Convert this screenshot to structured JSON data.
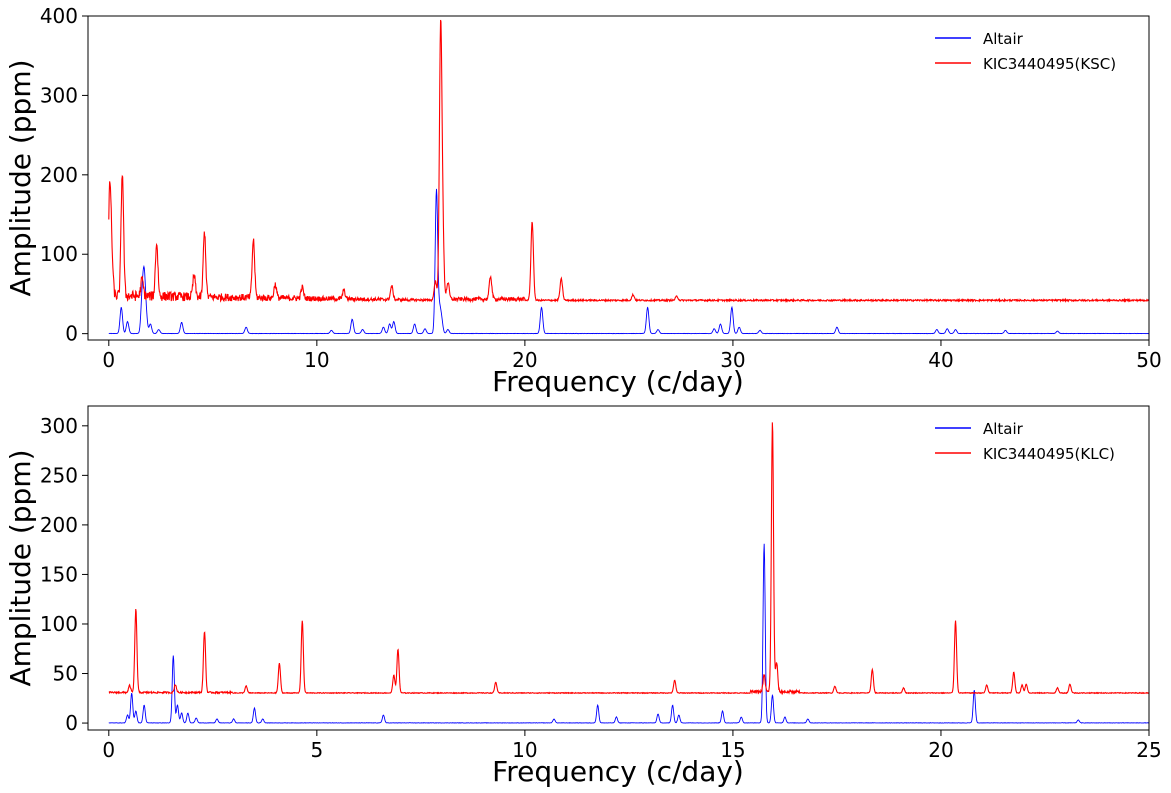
{
  "colors": {
    "altair": "#0000ff",
    "kic": "#ff0000"
  },
  "chart_data": [
    {
      "type": "line",
      "xlabel": "Frequency  (c/day)",
      "ylabel": "Amplitude (ppm)",
      "xlim": [
        -1,
        50
      ],
      "ylim": [
        -8,
        400
      ],
      "xticks": [
        0,
        10,
        20,
        30,
        40,
        50
      ],
      "yticks": [
        0,
        100,
        200,
        300,
        400
      ],
      "grid": false,
      "legend_position": "top-right",
      "series": [
        {
          "name": "Altair",
          "color": "#0000ff",
          "baseline": 0,
          "peaks": [
            [
              0.6,
              33
            ],
            [
              0.9,
              15
            ],
            [
              1.6,
              42
            ],
            [
              1.7,
              68
            ],
            [
              1.8,
              20
            ],
            [
              2.0,
              12
            ],
            [
              2.4,
              5
            ],
            [
              3.5,
              14
            ],
            [
              6.6,
              8
            ],
            [
              10.7,
              4
            ],
            [
              11.7,
              18
            ],
            [
              12.2,
              5
            ],
            [
              13.2,
              8
            ],
            [
              13.5,
              12
            ],
            [
              13.7,
              15
            ],
            [
              14.7,
              12
            ],
            [
              15.2,
              6
            ],
            [
              15.75,
              181
            ],
            [
              15.9,
              28
            ],
            [
              16.0,
              16
            ],
            [
              16.3,
              5
            ],
            [
              20.8,
              33
            ],
            [
              25.9,
              33
            ],
            [
              26.4,
              5
            ],
            [
              29.1,
              6
            ],
            [
              29.4,
              12
            ],
            [
              29.95,
              33
            ],
            [
              30.3,
              8
            ],
            [
              31.3,
              4
            ],
            [
              35.0,
              8
            ],
            [
              39.8,
              5
            ],
            [
              40.3,
              6
            ],
            [
              40.7,
              5
            ],
            [
              43.1,
              4
            ],
            [
              45.6,
              3
            ]
          ]
        },
        {
          "name": "KIC3440495(KSC)",
          "color": "#ff0000",
          "baseline": 41,
          "peaks": [
            [
              0.05,
              175
            ],
            [
              0.15,
              78
            ],
            [
              0.65,
              197
            ],
            [
              1.6,
              62
            ],
            [
              2.3,
              108
            ],
            [
              4.1,
              68
            ],
            [
              4.6,
              123
            ],
            [
              6.95,
              114
            ],
            [
              8.0,
              58
            ],
            [
              9.3,
              55
            ],
            [
              11.3,
              52
            ],
            [
              13.6,
              58
            ],
            [
              15.7,
              65
            ],
            [
              15.95,
              376
            ],
            [
              16.05,
              118
            ],
            [
              16.3,
              62
            ],
            [
              18.35,
              70
            ],
            [
              20.35,
              140
            ],
            [
              21.75,
              68
            ],
            [
              25.2,
              48
            ],
            [
              27.3,
              46
            ]
          ]
        }
      ]
    },
    {
      "type": "line",
      "xlabel": "Frequency  (c/day)",
      "ylabel": "Amplitude (ppm)",
      "xlim": [
        -0.5,
        25
      ],
      "ylim": [
        -7,
        320
      ],
      "xticks": [
        0,
        5,
        10,
        15,
        20,
        25
      ],
      "yticks": [
        0,
        50,
        100,
        150,
        200,
        250,
        300
      ],
      "grid": false,
      "legend_position": "top-right",
      "series": [
        {
          "name": "Altair",
          "color": "#0000ff",
          "baseline": 0,
          "peaks": [
            [
              0.45,
              8
            ],
            [
              0.55,
              30
            ],
            [
              0.65,
              12
            ],
            [
              0.85,
              18
            ],
            [
              1.55,
              68
            ],
            [
              1.65,
              18
            ],
            [
              1.75,
              10
            ],
            [
              1.9,
              10
            ],
            [
              2.1,
              5
            ],
            [
              2.6,
              4
            ],
            [
              3.0,
              4
            ],
            [
              3.5,
              15
            ],
            [
              3.7,
              4
            ],
            [
              6.6,
              8
            ],
            [
              10.7,
              4
            ],
            [
              11.75,
              18
            ],
            [
              12.2,
              6
            ],
            [
              13.2,
              9
            ],
            [
              13.55,
              18
            ],
            [
              13.7,
              8
            ],
            [
              14.75,
              12
            ],
            [
              15.2,
              6
            ],
            [
              15.75,
              181
            ],
            [
              15.95,
              28
            ],
            [
              16.25,
              6
            ],
            [
              16.8,
              4
            ],
            [
              20.8,
              33
            ],
            [
              23.3,
              3
            ]
          ]
        },
        {
          "name": "KIC3440495(KLC)",
          "color": "#ff0000",
          "baseline": 30,
          "peaks": [
            [
              0.5,
              37
            ],
            [
              0.65,
              114
            ],
            [
              1.6,
              38
            ],
            [
              2.3,
              92
            ],
            [
              3.3,
              37
            ],
            [
              4.1,
              60
            ],
            [
              4.65,
              103
            ],
            [
              6.85,
              48
            ],
            [
              6.95,
              74
            ],
            [
              9.3,
              41
            ],
            [
              13.6,
              43
            ],
            [
              15.75,
              47
            ],
            [
              15.95,
              303
            ],
            [
              16.05,
              60
            ],
            [
              17.45,
              37
            ],
            [
              18.35,
              54
            ],
            [
              19.1,
              35
            ],
            [
              20.35,
              103
            ],
            [
              21.1,
              38
            ],
            [
              21.75,
              51
            ],
            [
              21.95,
              38
            ],
            [
              22.05,
              39
            ],
            [
              22.8,
              35
            ],
            [
              23.1,
              39
            ]
          ]
        }
      ]
    }
  ]
}
